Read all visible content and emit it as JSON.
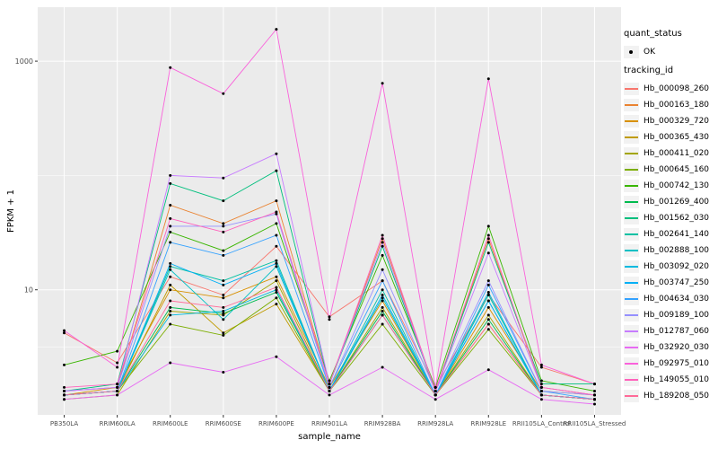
{
  "chart_data": {
    "type": "line",
    "title": "",
    "xlabel": "sample_name",
    "ylabel": "FPKM + 1",
    "y_scale": "log10",
    "y_ticks": [
      10,
      1000
    ],
    "y_minor_ticks": [
      3.162,
      100
    ],
    "y_range": [
      1,
      2400
    ],
    "panel_bg": "#EBEBEB",
    "grid_color": "#FFFFFF",
    "point_color": "#000000",
    "legend_position": "right",
    "categories": [
      "PB350LA",
      "RRIM600LA",
      "RRIM600LE",
      "RRIM600SE",
      "RRIM600PE",
      "RRIM901LA",
      "RRIM928BA",
      "RRIM928LA",
      "RRIM928LE",
      "RRII105LA_Control",
      "RRII105LA_Stressed"
    ],
    "series": [
      {
        "name": "Hb_000098_260",
        "color": "#F8766D",
        "values": [
          4.2,
          2.3,
          13,
          9,
          24,
          5.8,
          12,
          1.4,
          9,
          2.1,
          1.5
        ]
      },
      {
        "name": "Hb_000163_180",
        "color": "#EA8331",
        "values": [
          1.3,
          1.4,
          55,
          38,
          60,
          1.5,
          28,
          1.3,
          28,
          1.4,
          1.2
        ]
      },
      {
        "name": "Hb_000329_720",
        "color": "#D89000",
        "values": [
          1.2,
          1.4,
          10,
          8.5,
          13,
          1.4,
          8,
          1.2,
          7,
          1.3,
          1.2
        ]
      },
      {
        "name": "Hb_000365_430",
        "color": "#C09B00",
        "values": [
          1.2,
          1.3,
          11,
          4.2,
          7.5,
          1.3,
          6,
          1.2,
          5,
          1.2,
          1.1
        ]
      },
      {
        "name": "Hb_000411_020",
        "color": "#A3A500",
        "values": [
          1.1,
          1.2,
          6.5,
          6,
          12,
          1.3,
          7,
          1.2,
          6,
          1.2,
          1.1
        ]
      },
      {
        "name": "Hb_000645_160",
        "color": "#7CAE00",
        "values": [
          1.2,
          1.3,
          5,
          4,
          8.5,
          1.3,
          5,
          1.2,
          4.5,
          1.2,
          1.1
        ]
      },
      {
        "name": "Hb_000742_130",
        "color": "#39B600",
        "values": [
          2.2,
          2.9,
          32,
          22,
          38,
          1.6,
          20,
          1.4,
          36,
          1.6,
          1.3
        ]
      },
      {
        "name": "Hb_001269_400",
        "color": "#00BB4E",
        "values": [
          1.2,
          1.3,
          7,
          6.2,
          9.5,
          1.3,
          6.5,
          1.2,
          5.5,
          1.2,
          1.1
        ]
      },
      {
        "name": "Hb_001562_030",
        "color": "#00BF7D",
        "values": [
          1.3,
          1.5,
          85,
          60,
          110,
          1.5,
          24,
          1.3,
          26,
          1.5,
          1.5
        ]
      },
      {
        "name": "Hb_002641_140",
        "color": "#00C1A3",
        "values": [
          1.2,
          1.3,
          16,
          12,
          18,
          1.3,
          10,
          1.2,
          9,
          1.2,
          1.1
        ]
      },
      {
        "name": "Hb_002888_100",
        "color": "#00BFC4",
        "values": [
          1.2,
          1.3,
          15,
          5.5,
          16,
          1.3,
          8.5,
          1.2,
          8,
          1.2,
          1.1
        ]
      },
      {
        "name": "Hb_003092_020",
        "color": "#00BAE0",
        "values": [
          1.2,
          1.3,
          6,
          6.5,
          10,
          1.3,
          6,
          1.2,
          9.5,
          1.2,
          1.1
        ]
      },
      {
        "name": "Hb_003747_250",
        "color": "#00B0F6",
        "values": [
          1.2,
          1.3,
          17,
          11,
          17,
          1.3,
          9,
          1.2,
          8,
          1.2,
          1.1
        ]
      },
      {
        "name": "Hb_004634_030",
        "color": "#35A2FF",
        "values": [
          1.2,
          1.3,
          26,
          20,
          30,
          1.4,
          12,
          1.2,
          11,
          1.3,
          1.1
        ]
      },
      {
        "name": "Hb_009189_100",
        "color": "#9590FF",
        "values": [
          1.3,
          1.4,
          36,
          36,
          46,
          1.4,
          15,
          1.3,
          12,
          1.3,
          1.2
        ]
      },
      {
        "name": "Hb_012787_060",
        "color": "#C77CFF",
        "values": [
          1.3,
          1.4,
          100,
          95,
          155,
          1.5,
          26,
          1.3,
          21,
          1.4,
          1.2
        ]
      },
      {
        "name": "Hb_032920_030",
        "color": "#E76BF3",
        "values": [
          1.1,
          1.2,
          2.3,
          1.9,
          2.6,
          1.2,
          2.1,
          1.1,
          2.0,
          1.1,
          1.0
        ]
      },
      {
        "name": "Hb_092975_010",
        "color": "#FA62DB",
        "values": [
          4.4,
          2.1,
          880,
          520,
          1900,
          5.5,
          640,
          1.4,
          700,
          2.2,
          1.5
        ]
      },
      {
        "name": "Hb_149055_010",
        "color": "#FF62BC",
        "values": [
          1.4,
          1.5,
          42,
          32,
          48,
          1.5,
          30,
          1.3,
          30,
          1.4,
          1.2
        ]
      },
      {
        "name": "Hb_189208_050",
        "color": "#FF6A98",
        "values": [
          1.2,
          1.3,
          8,
          7,
          10.5,
          1.3,
          6,
          1.2,
          5,
          1.2,
          1.1
        ]
      }
    ]
  },
  "legend": {
    "quant_status": {
      "title": "quant_status",
      "items": [
        {
          "label": "OK",
          "shape": "point",
          "color": "#000000"
        }
      ]
    },
    "tracking_id": {
      "title": "tracking_id"
    }
  }
}
